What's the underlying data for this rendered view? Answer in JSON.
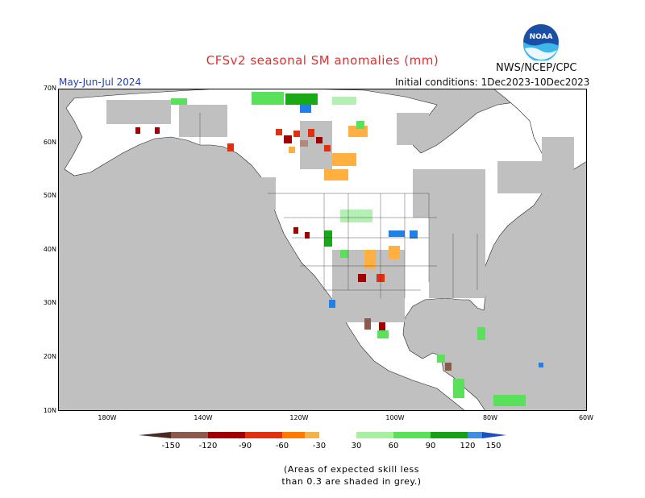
{
  "header": {
    "title": "CFSv2 seasonal SM anomalies (mm)",
    "agency": "NWS/NCEP/CPC",
    "season": "May-Jun-Jul 2024",
    "initial_conditions": "Initial conditions: 1Dec2023-10Dec2023",
    "logo_text": "NOAA"
  },
  "map": {
    "region": "North America",
    "latitude_labels": [
      "70N",
      "60N",
      "50N",
      "40N",
      "30N",
      "20N",
      "10N"
    ],
    "longitude_labels": [
      "180W",
      "140W",
      "120W",
      "100W",
      "80W",
      "60W"
    ],
    "ocean_color": "#c0c0c0",
    "land_color": "#ffffff",
    "low_skill_color": "#c0c0c0"
  },
  "colorbar": {
    "labels": [
      "-150",
      "-120",
      "-90",
      "-60",
      "-30",
      "30",
      "60",
      "90",
      "120",
      "150"
    ],
    "colors": [
      "#8b5a4a",
      "#b08a78",
      "#a00000",
      "#e03010",
      "#ff7b00",
      "#f5b24a",
      "#ffffff",
      "#a8f0a0",
      "#5ae05a",
      "#16a016",
      "#1a8a1a",
      "#3f8fe0"
    ]
  },
  "legend_colors": {
    "below": [
      "#8b5a4a",
      "#b08a78",
      "#a00000",
      "#ff4000",
      "#ffb040"
    ],
    "above": [
      "#b4f0b4",
      "#5ae05a",
      "#18a818",
      "#1f80e8"
    ]
  },
  "note": {
    "line1": "(Areas of expected skill less",
    "line2": "than 0.3 are shaded in grey.)"
  }
}
